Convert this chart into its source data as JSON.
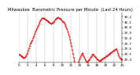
{
  "title": "Milwaukee  Barometric Pressure per Minute  (Last 24 Hours)",
  "line_color": "#cc0000",
  "bg_color": "#ffffff",
  "plot_bg_color": "#ffffff",
  "grid_color": "#888888",
  "y_min": 29.35,
  "y_max": 30.28,
  "y_ticks": [
    29.4,
    29.5,
    29.6,
    29.7,
    29.8,
    29.9,
    30.0,
    30.1,
    30.2
  ],
  "y_tick_labels": [
    "29.4",
    "29.5",
    "29.6",
    "29.7",
    "29.8",
    "29.9",
    "30.0",
    "30.1",
    "30.2"
  ],
  "pressure_data": [
    29.5,
    29.49,
    29.48,
    29.47,
    29.46,
    29.45,
    29.44,
    29.43,
    29.44,
    29.45,
    29.47,
    29.5,
    29.53,
    29.57,
    29.61,
    29.65,
    29.7,
    29.72,
    29.74,
    29.76,
    29.8,
    29.84,
    29.88,
    29.92,
    29.95,
    29.98,
    30.01,
    30.04,
    30.07,
    30.1,
    30.13,
    30.15,
    30.17,
    30.18,
    30.18,
    30.17,
    30.16,
    30.15,
    30.14,
    30.13,
    30.12,
    30.11,
    30.1,
    30.09,
    30.08,
    30.07,
    30.08,
    30.09,
    30.1,
    30.12,
    30.14,
    30.16,
    30.17,
    30.18,
    30.19,
    30.19,
    30.18,
    30.17,
    30.16,
    30.14,
    30.12,
    30.11,
    30.1,
    30.08,
    30.06,
    30.03,
    30.0,
    29.97,
    29.93,
    29.88,
    29.83,
    29.77,
    29.71,
    29.65,
    29.58,
    29.51,
    29.44,
    29.38,
    29.33,
    29.3,
    29.28,
    29.3,
    29.33,
    29.36,
    29.4,
    29.44,
    29.47,
    29.5,
    29.52,
    29.5,
    29.47,
    29.44,
    29.41,
    29.38,
    29.36,
    29.35,
    29.37,
    29.39,
    29.41,
    29.43,
    29.45,
    29.47,
    29.49,
    29.5,
    29.49,
    29.47,
    29.45,
    29.43,
    29.41,
    29.4,
    29.39,
    29.38,
    29.37,
    29.38,
    29.39,
    29.4,
    29.41,
    29.42,
    29.43,
    29.44,
    29.45,
    29.46,
    29.47,
    29.48,
    29.49,
    29.5,
    29.51,
    29.52,
    29.53,
    29.54,
    29.55,
    29.56,
    29.57,
    29.58,
    29.59,
    29.6,
    29.57,
    29.53,
    29.5,
    29.47,
    29.44,
    29.42,
    29.4,
    29.39
  ],
  "x_tick_positions": [
    0,
    12,
    24,
    36,
    48,
    60,
    72,
    84,
    96,
    108,
    120,
    132,
    143
  ],
  "x_tick_labels": [
    "0",
    "2",
    "4",
    "6",
    "8",
    "10",
    "12",
    "14",
    "16",
    "18",
    "20",
    "22",
    "24"
  ],
  "title_fontsize": 3.8,
  "axis_fontsize": 3.0,
  "marker_size": 0.7,
  "line_width": 0.4
}
